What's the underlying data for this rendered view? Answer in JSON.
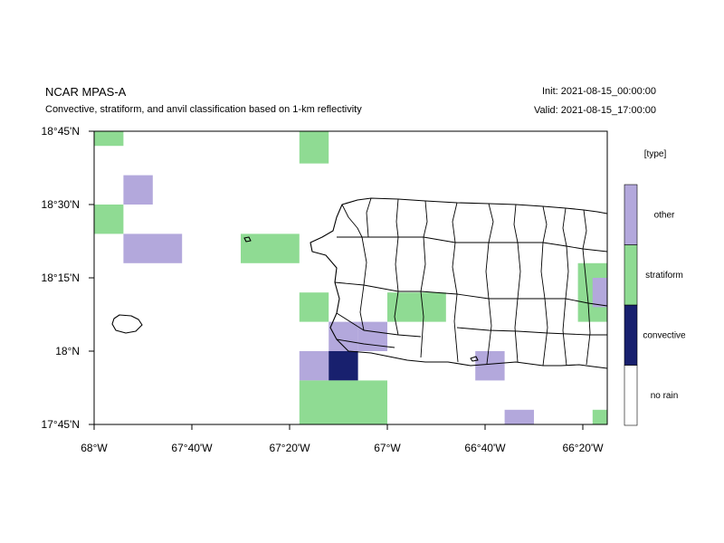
{
  "header": {
    "title": "NCAR MPAS-A",
    "subtitle": "Convective, stratiform, and anvil classification based on 1-km reflectivity",
    "init": "Init: 2021-08-15_00:00:00",
    "valid": "Valid: 2021-08-15_17:00:00"
  },
  "colors": {
    "other": "#b3a8dc",
    "stratiform": "#8fdb93",
    "convective": "#18206e",
    "no_rain": "#ffffff",
    "coastline": "#000000"
  },
  "chart_data": {
    "type": "heatmap",
    "title": "Convective, stratiform, and anvil classification based on 1-km reflectivity",
    "x_unit": "degrees longitude (negative = W)",
    "y_unit": "degrees latitude (N)",
    "xlim": [
      -68.0,
      -66.25
    ],
    "ylim": [
      17.75,
      18.75
    ],
    "grid": false,
    "x_ticks": [
      {
        "value": -68.0,
        "label": "68°W"
      },
      {
        "value": -67.6667,
        "label": "67°40'W"
      },
      {
        "value": -67.3333,
        "label": "67°20'W"
      },
      {
        "value": -67.0,
        "label": "67°W"
      },
      {
        "value": -66.6667,
        "label": "66°40'W"
      },
      {
        "value": -66.3333,
        "label": "66°20'W"
      }
    ],
    "y_ticks": [
      {
        "value": 17.75,
        "label": "17°45'N"
      },
      {
        "value": 18.0,
        "label": "18°N"
      },
      {
        "value": 18.25,
        "label": "18°15'N"
      },
      {
        "value": 18.5,
        "label": "18°30'N"
      },
      {
        "value": 18.75,
        "label": "18°45'N"
      }
    ],
    "legend": {
      "title": "[type]",
      "placement": "right",
      "entries": [
        "no rain",
        "convective",
        "stratiform",
        "other"
      ]
    },
    "cells": [
      {
        "lon": [
          -68.0,
          -67.9
        ],
        "lat": [
          18.7,
          18.75
        ],
        "type": "stratiform"
      },
      {
        "lon": [
          -67.3,
          -67.2
        ],
        "lat": [
          18.64,
          18.75
        ],
        "type": "stratiform"
      },
      {
        "lon": [
          -67.9,
          -67.8
        ],
        "lat": [
          18.5,
          18.6
        ],
        "type": "other"
      },
      {
        "lon": [
          -68.0,
          -67.9
        ],
        "lat": [
          18.4,
          18.5
        ],
        "type": "stratiform"
      },
      {
        "lon": [
          -67.9,
          -67.7
        ],
        "lat": [
          18.3,
          18.4
        ],
        "type": "other"
      },
      {
        "lon": [
          -67.5,
          -67.3
        ],
        "lat": [
          18.3,
          18.4
        ],
        "type": "stratiform"
      },
      {
        "lon": [
          -67.3,
          -67.2
        ],
        "lat": [
          18.1,
          18.2
        ],
        "type": "stratiform"
      },
      {
        "lon": [
          -67.2,
          -67.1
        ],
        "lat": [
          18.0,
          18.1
        ],
        "type": "other"
      },
      {
        "lon": [
          -67.1,
          -67.0
        ],
        "lat": [
          18.0,
          18.1
        ],
        "type": "other"
      },
      {
        "lon": [
          -67.3,
          -67.2
        ],
        "lat": [
          17.9,
          18.0
        ],
        "type": "other"
      },
      {
        "lon": [
          -67.2,
          -67.1
        ],
        "lat": [
          17.9,
          18.0
        ],
        "type": "convective"
      },
      {
        "lon": [
          -67.3,
          -67.0
        ],
        "lat": [
          17.75,
          17.9
        ],
        "type": "stratiform"
      },
      {
        "lon": [
          -67.0,
          -66.8
        ],
        "lat": [
          18.1,
          18.2
        ],
        "type": "stratiform"
      },
      {
        "lon": [
          -66.7,
          -66.6
        ],
        "lat": [
          17.9,
          18.0
        ],
        "type": "other"
      },
      {
        "lon": [
          -66.6,
          -66.5
        ],
        "lat": [
          17.75,
          17.8
        ],
        "type": "other"
      },
      {
        "lon": [
          -66.35,
          -66.25
        ],
        "lat": [
          18.1,
          18.3
        ],
        "type": "stratiform"
      },
      {
        "lon": [
          -66.3,
          -66.25
        ],
        "lat": [
          18.15,
          18.25
        ],
        "type": "other"
      },
      {
        "lon": [
          -66.3,
          -66.25
        ],
        "lat": [
          17.75,
          17.8
        ],
        "type": "stratiform"
      }
    ]
  }
}
